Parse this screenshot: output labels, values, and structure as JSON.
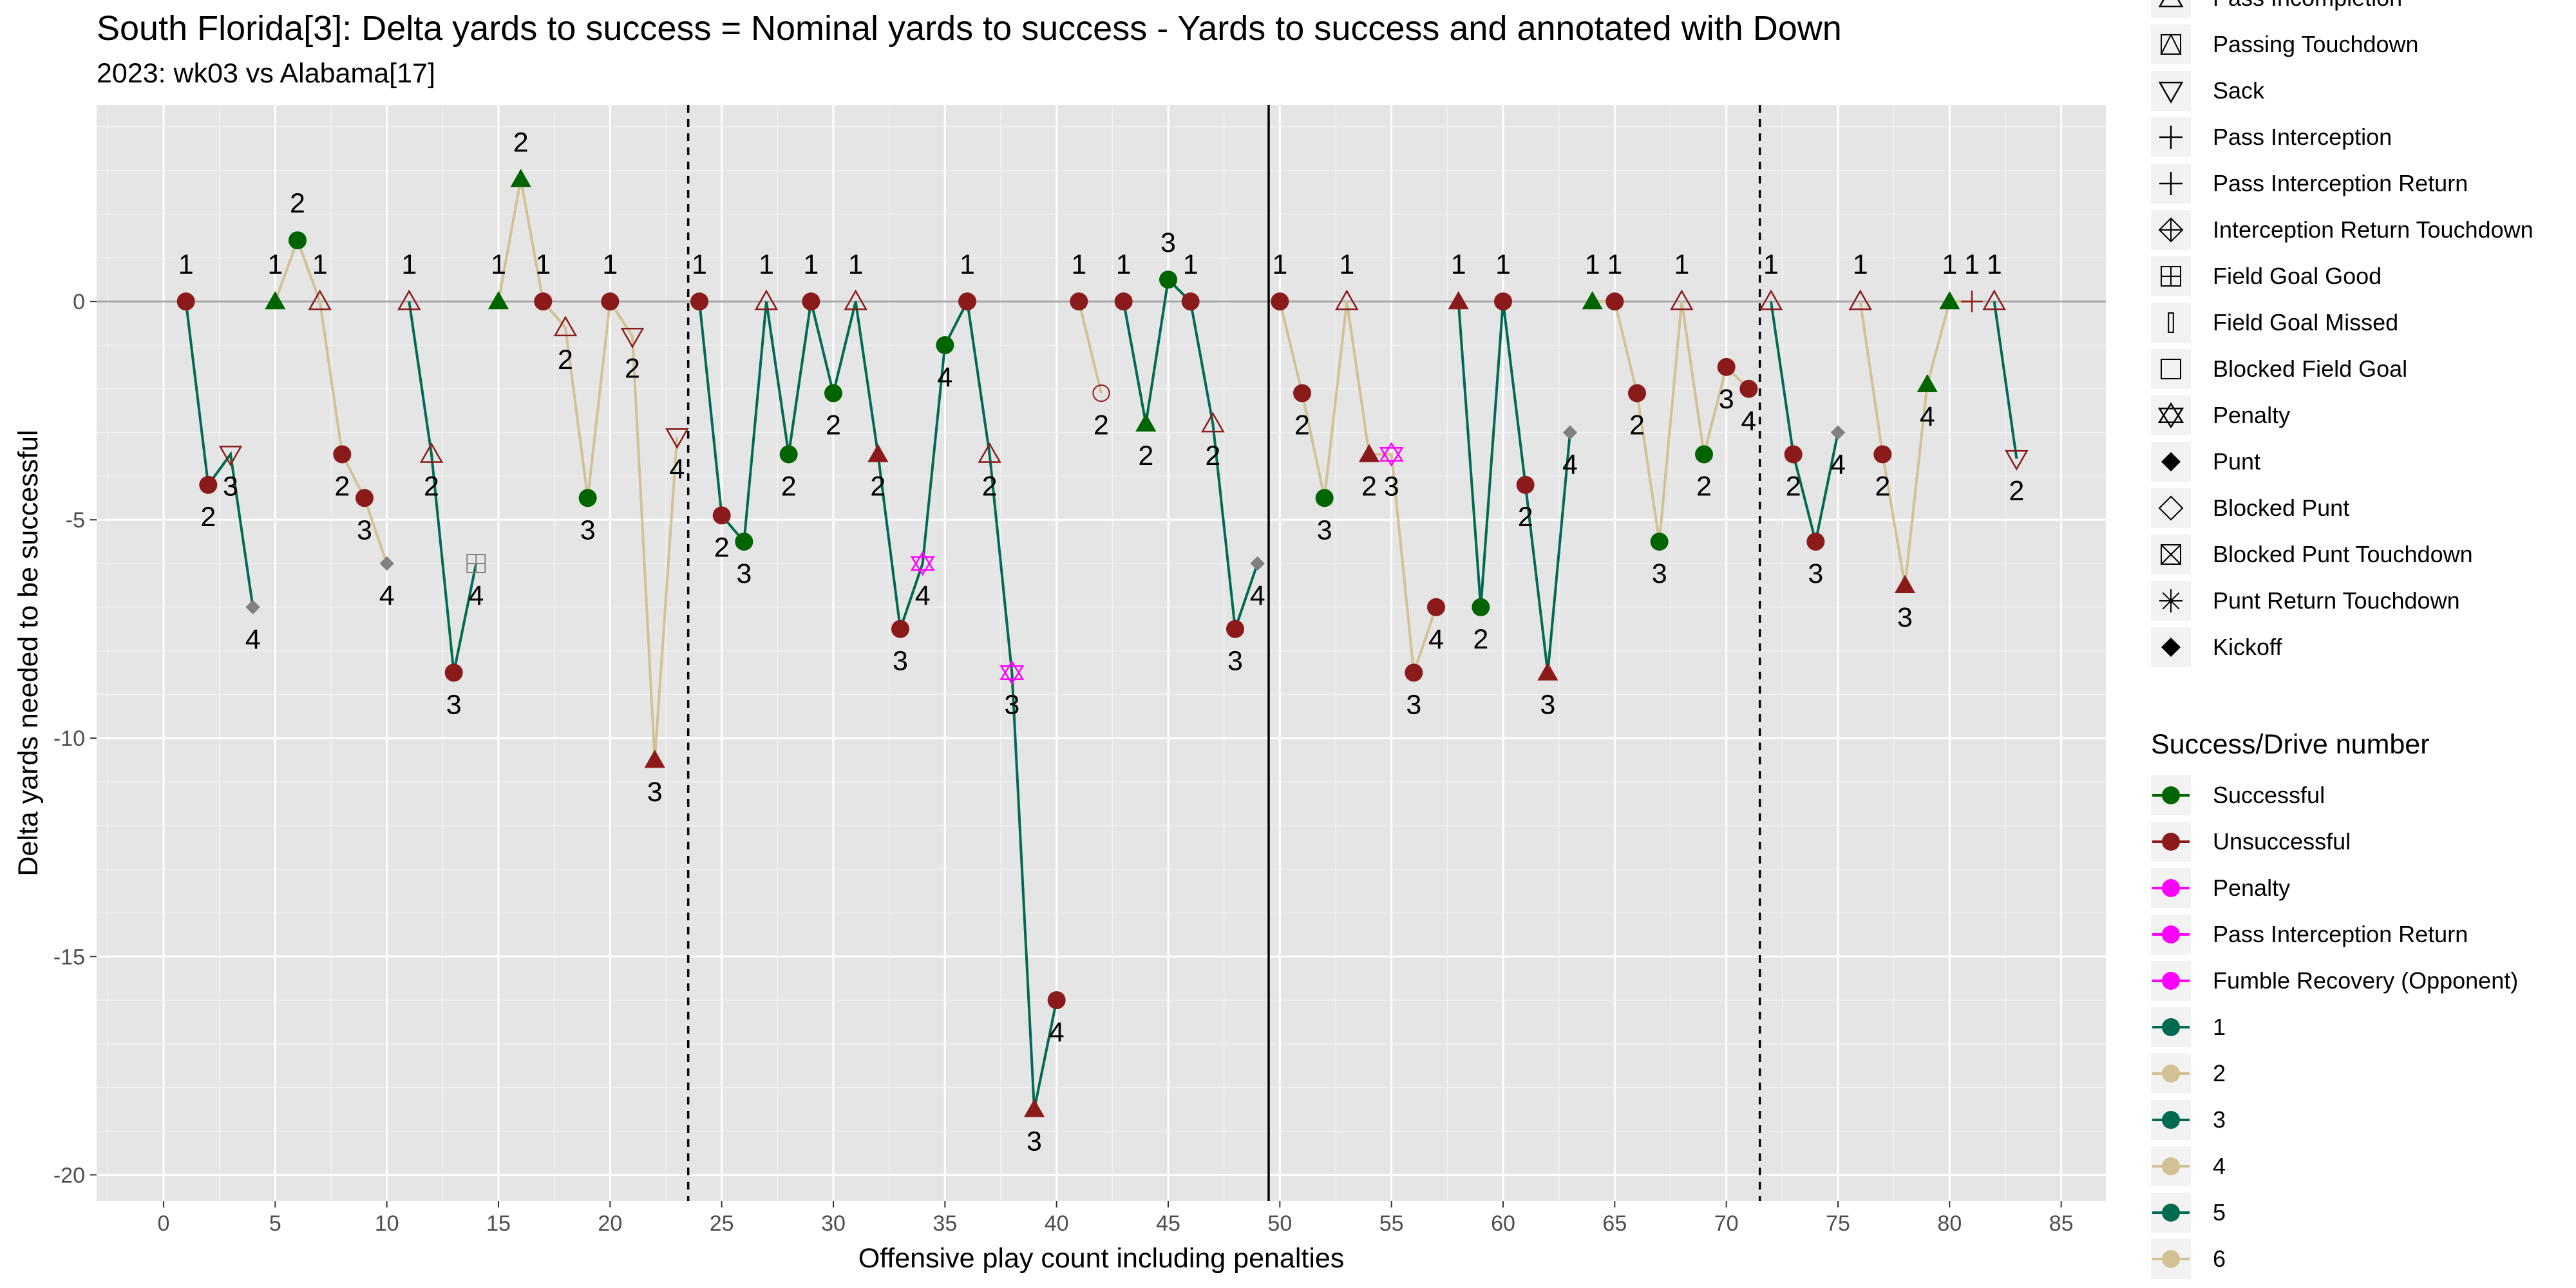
{
  "chart_data": {
    "type": "line",
    "title": "South Florida[3]: Delta yards to success = Nominal yards to success - Yards to success and annotated with Down",
    "subtitle": "2023: wk03 vs Alabama[17]",
    "xlabel": "Offensive play count including penalties",
    "ylabel": "Delta yards needed to be successful",
    "xlim": [
      -3,
      87
    ],
    "ylim": [
      -20.6,
      4.5
    ],
    "x_ticks": [
      0,
      5,
      10,
      15,
      20,
      25,
      30,
      35,
      40,
      45,
      50,
      55,
      60,
      65,
      70,
      75,
      80,
      85
    ],
    "y_ticks": [
      -20,
      -15,
      -10,
      -5,
      0
    ],
    "y_tick_labels": [
      "-20",
      "-15",
      "-10",
      "-5",
      "0"
    ],
    "grid": true,
    "vlines": [
      {
        "x": 23.5,
        "style": "dashed"
      },
      {
        "x": 49.5,
        "style": "solid"
      },
      {
        "x": 71.5,
        "style": "dashed"
      }
    ],
    "colors": {
      "successful": "#006400",
      "unsuccessful": "#8b1a1a",
      "penalty": "#ff00ff",
      "missed": "#808080",
      "drive_odd": "#006b50",
      "drive_even": "#d2c192",
      "panel": "#e5e5e5",
      "grid": "#ffffff"
    },
    "drives": [
      {
        "id": 1,
        "points": [
          {
            "x": 1,
            "y": 0,
            "s": "circle",
            "c": "unsuccessful",
            "label": "1"
          },
          {
            "x": 2,
            "y": -4.2,
            "s": "circle",
            "c": "unsuccessful",
            "label": "2"
          },
          {
            "x": 3,
            "y": -3.5,
            "s": "tri-down",
            "c": "unsuccessful",
            "label": "3"
          },
          {
            "x": 4,
            "y": -7,
            "s": "diamond-small",
            "c": "missed",
            "label": "4"
          }
        ]
      },
      {
        "id": 2,
        "points": [
          {
            "x": 5,
            "y": 0,
            "s": "tri-up-filled",
            "c": "successful",
            "label": "1"
          },
          {
            "x": 6,
            "y": 1.4,
            "s": "circle",
            "c": "successful",
            "label": "2"
          },
          {
            "x": 7,
            "y": 0,
            "s": "tri-up",
            "c": "unsuccessful",
            "label": "1"
          },
          {
            "x": 8,
            "y": -3.5,
            "s": "circle",
            "c": "unsuccessful",
            "label": "2"
          },
          {
            "x": 9,
            "y": -4.5,
            "s": "circle",
            "c": "unsuccessful",
            "label": "3"
          },
          {
            "x": 10,
            "y": -6,
            "s": "diamond-small",
            "c": "missed",
            "label": "4"
          }
        ]
      },
      {
        "id": 3,
        "points": [
          {
            "x": 11,
            "y": 0,
            "s": "tri-up",
            "c": "unsuccessful",
            "label": "1"
          },
          {
            "x": 12,
            "y": -3.5,
            "s": "tri-up",
            "c": "unsuccessful",
            "label": "2"
          },
          {
            "x": 13,
            "y": -8.5,
            "s": "circle",
            "c": "unsuccessful",
            "label": "3"
          },
          {
            "x": 14,
            "y": -6,
            "s": "square-plus",
            "c": "missed",
            "label": "4"
          }
        ]
      },
      {
        "id": 4,
        "points": [
          {
            "x": 15,
            "y": 0,
            "s": "tri-up-filled",
            "c": "successful",
            "label": "1"
          },
          {
            "x": 16,
            "y": 2.8,
            "s": "tri-up-filled",
            "c": "successful",
            "label": "2"
          },
          {
            "x": 17,
            "y": 0,
            "s": "circle",
            "c": "unsuccessful",
            "label": "1"
          },
          {
            "x": 18,
            "y": -0.6,
            "s": "tri-up",
            "c": "unsuccessful",
            "label": "2"
          },
          {
            "x": 19,
            "y": -4.5,
            "s": "circle",
            "c": "successful",
            "label": "3"
          },
          {
            "x": 20,
            "y": 0,
            "s": "circle",
            "c": "unsuccessful",
            "label": "1"
          },
          {
            "x": 21,
            "y": -0.8,
            "s": "tri-down",
            "c": "unsuccessful",
            "label": "2"
          },
          {
            "x": 22,
            "y": -10.5,
            "s": "tri-up-filled",
            "c": "unsuccessful",
            "label": "3"
          },
          {
            "x": 23,
            "y": -3.1,
            "s": "tri-down",
            "c": "unsuccessful",
            "label": "4"
          }
        ]
      },
      {
        "id": 5,
        "points": [
          {
            "x": 24,
            "y": 0,
            "s": "circle",
            "c": "unsuccessful",
            "label": "1"
          },
          {
            "x": 25,
            "y": -4.9,
            "s": "circle",
            "c": "unsuccessful",
            "label": "2"
          },
          {
            "x": 26,
            "y": -5.5,
            "s": "circle",
            "c": "successful",
            "label": "3"
          },
          {
            "x": 27,
            "y": 0,
            "s": "tri-up",
            "c": "unsuccessful",
            "label": "1"
          },
          {
            "x": 28,
            "y": -3.5,
            "s": "circle",
            "c": "successful",
            "label": "2"
          },
          {
            "x": 29,
            "y": 0,
            "s": "circle",
            "c": "unsuccessful",
            "label": "1"
          },
          {
            "x": 30,
            "y": -2.1,
            "s": "circle",
            "c": "successful",
            "label": "2"
          },
          {
            "x": 31,
            "y": 0,
            "s": "tri-up",
            "c": "unsuccessful",
            "label": "1"
          },
          {
            "x": 32,
            "y": -3.5,
            "s": "tri-up-filled",
            "c": "unsuccessful",
            "label": "2"
          },
          {
            "x": 33,
            "y": -7.5,
            "s": "circle",
            "c": "unsuccessful",
            "label": "3"
          },
          {
            "x": 34,
            "y": -6,
            "s": "star-penalty",
            "c": "penalty",
            "label": "4"
          },
          {
            "x": 35,
            "y": -1,
            "s": "circle",
            "c": "successful",
            "label": "4"
          },
          {
            "x": 36,
            "y": 0,
            "s": "circle",
            "c": "unsuccessful",
            "label": "1"
          },
          {
            "x": 37,
            "y": -3.5,
            "s": "tri-up",
            "c": "unsuccessful",
            "label": "2"
          },
          {
            "x": 38,
            "y": -8.5,
            "s": "star-penalty",
            "c": "penalty",
            "label": "3"
          },
          {
            "x": 39,
            "y": -18.5,
            "s": "tri-up-filled",
            "c": "unsuccessful",
            "label": "3"
          },
          {
            "x": 40,
            "y": -16,
            "s": "circle",
            "c": "unsuccessful",
            "label": "4"
          }
        ]
      },
      {
        "id": 6,
        "points": [
          {
            "x": 41,
            "y": 0,
            "s": "circle",
            "c": "unsuccessful",
            "label": "1"
          },
          {
            "x": 42,
            "y": -2.1,
            "s": "circle-open",
            "c": "unsuccessful",
            "label": "2"
          }
        ]
      },
      {
        "id": 7,
        "points": [
          {
            "x": 43,
            "y": 0,
            "s": "circle",
            "c": "unsuccessful",
            "label": "1"
          },
          {
            "x": 44,
            "y": -2.8,
            "s": "tri-up-filled",
            "c": "successful",
            "label": "2"
          },
          {
            "x": 45,
            "y": 0.5,
            "s": "circle",
            "c": "successful",
            "label": "3"
          },
          {
            "x": 46,
            "y": 0,
            "s": "circle",
            "c": "unsuccessful",
            "label": "1"
          },
          {
            "x": 47,
            "y": -2.8,
            "s": "tri-up",
            "c": "unsuccessful",
            "label": "2"
          },
          {
            "x": 48,
            "y": -7.5,
            "s": "circle",
            "c": "unsuccessful",
            "label": "3"
          },
          {
            "x": 49,
            "y": -6,
            "s": "diamond-small",
            "c": "missed",
            "label": "4"
          }
        ]
      },
      {
        "id": 8,
        "points": [
          {
            "x": 50,
            "y": 0,
            "s": "circle",
            "c": "unsuccessful",
            "label": "1"
          },
          {
            "x": 51,
            "y": -2.1,
            "s": "circle",
            "c": "unsuccessful",
            "label": "2"
          },
          {
            "x": 52,
            "y": -4.5,
            "s": "circle",
            "c": "successful",
            "label": "3"
          },
          {
            "x": 53,
            "y": 0,
            "s": "tri-up",
            "c": "unsuccessful",
            "label": "1"
          },
          {
            "x": 54,
            "y": -3.5,
            "s": "tri-up-filled",
            "c": "unsuccessful",
            "label": "2"
          },
          {
            "x": 55,
            "y": -3.5,
            "s": "star-penalty",
            "c": "penalty",
            "label": "3"
          },
          {
            "x": 56,
            "y": -8.5,
            "s": "circle",
            "c": "unsuccessful",
            "label": "3"
          },
          {
            "x": 57,
            "y": -7,
            "s": "circle",
            "c": "unsuccessful",
            "label": "4"
          }
        ]
      },
      {
        "id": 9,
        "points": [
          {
            "x": 58,
            "y": 0,
            "s": "tri-up-filled",
            "c": "unsuccessful",
            "label": "1"
          },
          {
            "x": 59,
            "y": -7,
            "s": "circle",
            "c": "successful",
            "label": "2"
          },
          {
            "x": 60,
            "y": 0,
            "s": "circle",
            "c": "unsuccessful",
            "label": "1"
          },
          {
            "x": 61,
            "y": -4.2,
            "s": "circle",
            "c": "unsuccessful",
            "label": "2"
          },
          {
            "x": 62,
            "y": -8.5,
            "s": "tri-up-filled",
            "c": "unsuccessful",
            "label": "3"
          },
          {
            "x": 63,
            "y": -3,
            "s": "diamond-small",
            "c": "missed",
            "label": "4"
          }
        ]
      },
      {
        "id": 10,
        "points": [
          {
            "x": 64,
            "y": 0,
            "s": "tri-up-filled",
            "c": "successful",
            "label": "1"
          },
          {
            "x": 65,
            "y": 0,
            "s": "circle",
            "c": "unsuccessful",
            "label": "1"
          },
          {
            "x": 66,
            "y": -2.1,
            "s": "circle",
            "c": "unsuccessful",
            "label": "2"
          },
          {
            "x": 67,
            "y": -5.5,
            "s": "circle",
            "c": "successful",
            "label": "3"
          },
          {
            "x": 68,
            "y": 0,
            "s": "tri-up",
            "c": "unsuccessful",
            "label": "1"
          },
          {
            "x": 69,
            "y": -3.5,
            "s": "circle",
            "c": "successful",
            "label": "2"
          },
          {
            "x": 70,
            "y": -1.5,
            "s": "circle",
            "c": "unsuccessful",
            "label": "3"
          },
          {
            "x": 71,
            "y": -2,
            "s": "circle",
            "c": "unsuccessful",
            "label": "4"
          }
        ]
      },
      {
        "id": 11,
        "points": [
          {
            "x": 72,
            "y": 0,
            "s": "tri-up",
            "c": "unsuccessful",
            "label": "1"
          },
          {
            "x": 73,
            "y": -3.5,
            "s": "circle",
            "c": "unsuccessful",
            "label": "2"
          },
          {
            "x": 74,
            "y": -5.5,
            "s": "circle",
            "c": "unsuccessful",
            "label": "3"
          },
          {
            "x": 75,
            "y": -3,
            "s": "diamond-small",
            "c": "missed",
            "label": "4"
          }
        ]
      },
      {
        "id": 12,
        "points": [
          {
            "x": 76,
            "y": 0,
            "s": "tri-up",
            "c": "unsuccessful",
            "label": "1"
          },
          {
            "x": 77,
            "y": -3.5,
            "s": "circle",
            "c": "unsuccessful",
            "label": "2"
          },
          {
            "x": 78,
            "y": -6.5,
            "s": "tri-up-filled",
            "c": "unsuccessful",
            "label": "3"
          },
          {
            "x": 79,
            "y": -1.9,
            "s": "tri-up-filled",
            "c": "successful",
            "label": "4"
          },
          {
            "x": 80,
            "y": 0,
            "s": "tri-up-filled",
            "c": "successful",
            "label": "1"
          },
          {
            "x": 81,
            "y": 0,
            "s": "plus",
            "c": "unsuccessful",
            "label": "1"
          }
        ]
      },
      {
        "id": 13,
        "points": [
          {
            "x": 82,
            "y": 0,
            "s": "tri-up",
            "c": "unsuccessful",
            "label": "1"
          },
          {
            "x": 83,
            "y": -3.6,
            "s": "tri-down",
            "c": "unsuccessful",
            "label": "2"
          }
        ]
      }
    ],
    "legend_play_type": [
      {
        "label": "Pass Incompletion",
        "s": "tri-up"
      },
      {
        "label": "Passing Touchdown",
        "s": "tri-up-box"
      },
      {
        "label": "Sack",
        "s": "tri-down"
      },
      {
        "label": "Pass Interception",
        "s": "plus"
      },
      {
        "label": "Pass Interception Return",
        "s": "plus"
      },
      {
        "label": "Interception Return Touchdown",
        "s": "diamond-plus"
      },
      {
        "label": "Field Goal Good",
        "s": "square-plus"
      },
      {
        "label": "Field Goal Missed",
        "s": "bar"
      },
      {
        "label": "Blocked Field Goal",
        "s": "square"
      },
      {
        "label": "Penalty",
        "s": "star-penalty"
      },
      {
        "label": "Punt",
        "s": "diamond-filled"
      },
      {
        "label": "Blocked Punt",
        "s": "diamond-open"
      },
      {
        "label": "Blocked Punt Touchdown",
        "s": "square-x"
      },
      {
        "label": "Punt Return Touchdown",
        "s": "asterisk"
      },
      {
        "label": "Kickoff",
        "s": "diamond-filled"
      }
    ],
    "legend_success": {
      "title": "Success/Drive number",
      "items": [
        {
          "label": "Successful",
          "color": "#006400"
        },
        {
          "label": "Unsuccessful",
          "color": "#8b1a1a"
        },
        {
          "label": "Penalty",
          "color": "#ff00ff"
        },
        {
          "label": "Pass Interception Return",
          "color": "#ff00ff"
        },
        {
          "label": "Fumble Recovery (Opponent)",
          "color": "#ff00ff"
        },
        {
          "label": "1",
          "color": "#006b50"
        },
        {
          "label": "2",
          "color": "#d2c192"
        },
        {
          "label": "3",
          "color": "#006b50"
        },
        {
          "label": "4",
          "color": "#d2c192"
        },
        {
          "label": "5",
          "color": "#006b50"
        },
        {
          "label": "6",
          "color": "#d2c192"
        }
      ]
    }
  }
}
